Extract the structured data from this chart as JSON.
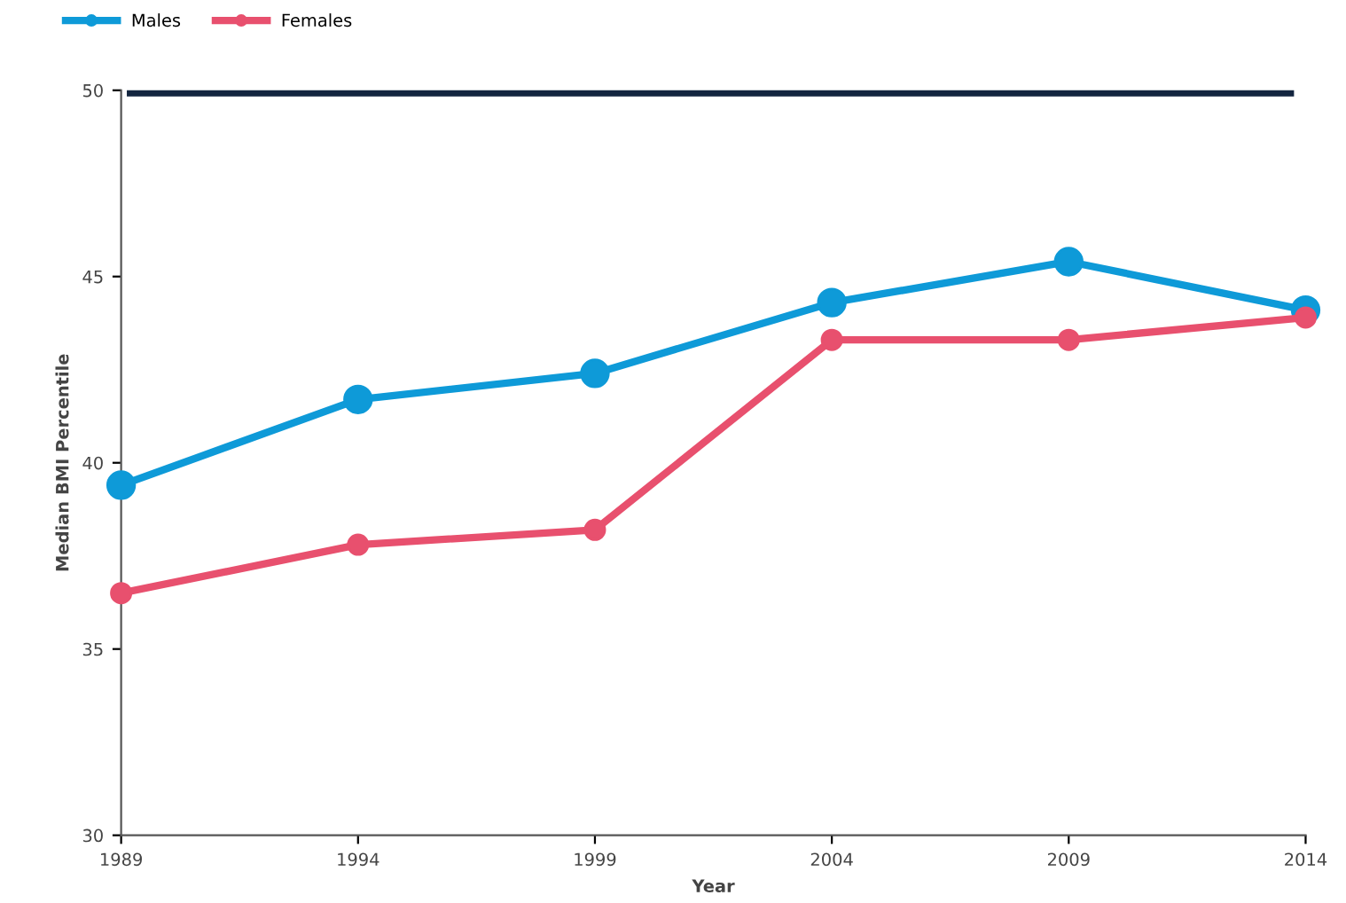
{
  "chart_data": {
    "type": "line",
    "xlabel": "Year",
    "ylabel": "Median BMI Percentile",
    "x": [
      1989,
      1994,
      1999,
      2004,
      2009,
      2014
    ],
    "series": [
      {
        "name": "Males",
        "color": "#0e9ad8",
        "values": [
          39.4,
          41.7,
          42.4,
          44.3,
          45.4,
          44.1
        ]
      },
      {
        "name": "Females",
        "color": "#e8506e",
        "values": [
          36.5,
          37.8,
          38.2,
          43.3,
          43.3,
          43.9
        ]
      }
    ],
    "xlim": [
      1989,
      2014
    ],
    "xticks": [
      1989,
      1994,
      1999,
      2004,
      2009,
      2014
    ],
    "ylim": [
      30,
      50
    ],
    "yticks": [
      30,
      35,
      40,
      45,
      50
    ],
    "ref_lines": [
      {
        "axis": "y",
        "value": 50,
        "color": "#13253f"
      }
    ],
    "grid": false,
    "legend": "top left",
    "marker": "circle",
    "line_style": "solid"
  }
}
